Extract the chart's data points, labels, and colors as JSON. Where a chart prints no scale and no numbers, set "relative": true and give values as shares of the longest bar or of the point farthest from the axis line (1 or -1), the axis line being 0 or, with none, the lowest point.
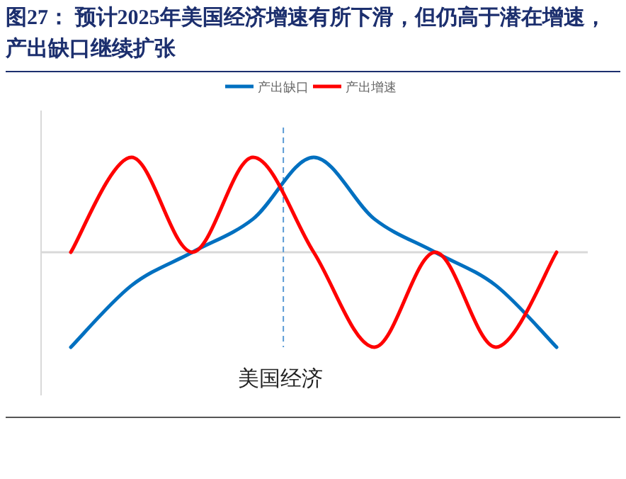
{
  "chart_data": {
    "type": "line",
    "title": "图27：  预计2025年美国经济增速有所下滑，但仍高于潜在增速，产出缺口继续扩张",
    "categories": [
      null,
      null,
      null,
      null,
      null,
      null,
      null,
      null,
      null
    ],
    "relative": true,
    "series": [
      {
        "name": "产出缺口",
        "color": "#0070c0",
        "values": [
          -1,
          -0.35,
          0,
          0.35,
          1,
          0.35,
          0,
          -0.35,
          -1
        ]
      },
      {
        "name": "产出增速",
        "color": "#ff0000",
        "values": [
          0,
          1,
          0,
          1,
          0,
          -1,
          0,
          -1,
          0
        ]
      }
    ],
    "annotations": [
      "美国经济"
    ],
    "legend": "top",
    "grid": false
  }
}
